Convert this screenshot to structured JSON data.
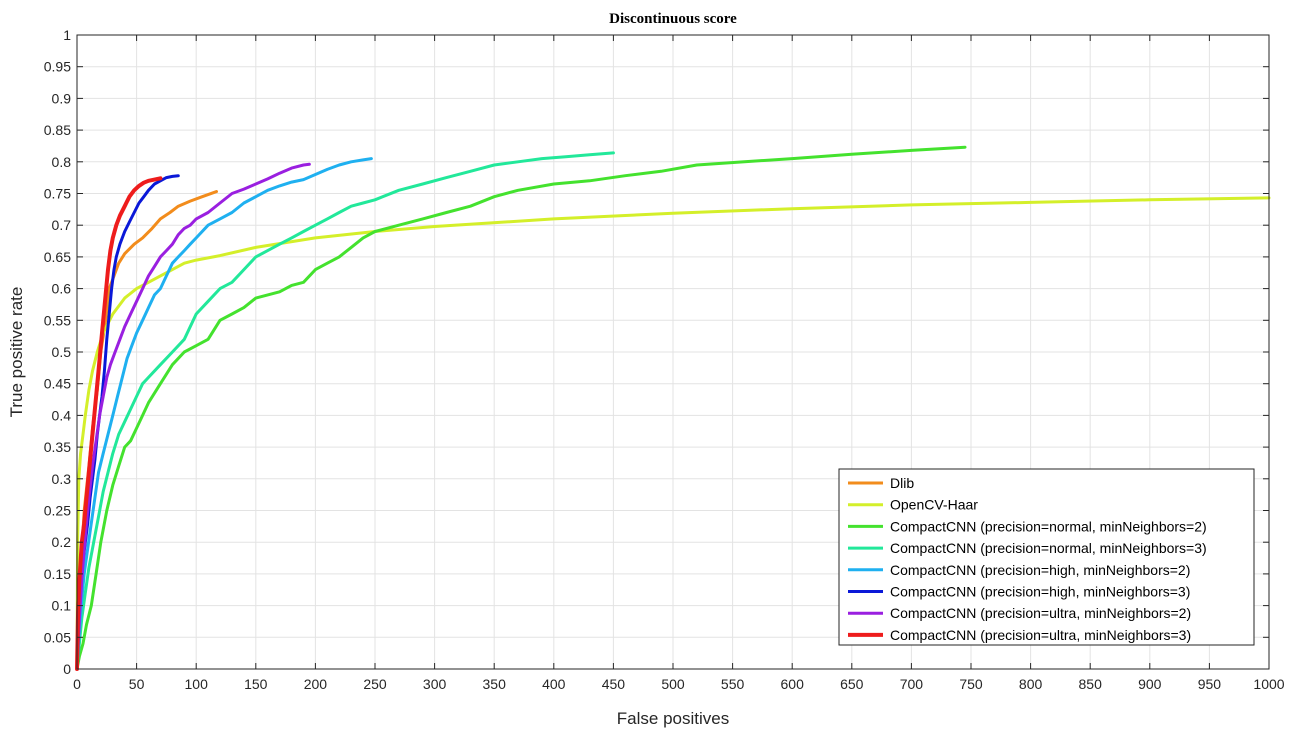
{
  "chart_data": {
    "type": "line",
    "title": "Discontinuous score",
    "xlabel": "False positives",
    "ylabel": "True positive rate",
    "xlim": [
      0,
      1000
    ],
    "ylim": [
      0,
      1
    ],
    "xticks": [
      "0",
      "50",
      "100",
      "150",
      "200",
      "250",
      "300",
      "350",
      "400",
      "450",
      "500",
      "550",
      "600",
      "650",
      "700",
      "750",
      "800",
      "850",
      "900",
      "950",
      "1000"
    ],
    "yticks": [
      "0",
      "0.05",
      "0.1",
      "0.15",
      "0.2",
      "0.25",
      "0.3",
      "0.35",
      "0.4",
      "0.45",
      "0.5",
      "0.55",
      "0.6",
      "0.65",
      "0.7",
      "0.75",
      "0.8",
      "0.85",
      "0.9",
      "0.95",
      "1"
    ],
    "grid": true,
    "legend_position": "bottom-right",
    "series": [
      {
        "name": "Dlib",
        "color": "#f28c1c",
        "x": [
          0,
          3,
          6,
          10,
          13,
          17,
          20,
          24,
          27,
          30,
          35,
          40,
          48,
          55,
          63,
          70,
          78,
          85,
          95,
          105,
          117
        ],
        "y": [
          0,
          0.15,
          0.25,
          0.32,
          0.38,
          0.44,
          0.5,
          0.55,
          0.6,
          0.615,
          0.64,
          0.655,
          0.67,
          0.68,
          0.695,
          0.71,
          0.72,
          0.73,
          0.738,
          0.745,
          0.753
        ]
      },
      {
        "name": "OpenCV-Haar",
        "color": "#d4ef2a",
        "x": [
          0,
          0.5,
          1.5,
          3,
          5,
          7,
          10,
          13,
          17,
          22,
          30,
          40,
          50,
          60,
          70,
          80,
          90,
          100,
          120,
          150,
          200,
          250,
          300,
          400,
          500,
          600,
          700,
          800,
          900,
          1000
        ],
        "y": [
          0,
          0.2,
          0.3,
          0.34,
          0.37,
          0.4,
          0.44,
          0.47,
          0.5,
          0.53,
          0.56,
          0.585,
          0.6,
          0.61,
          0.62,
          0.63,
          0.64,
          0.645,
          0.652,
          0.665,
          0.68,
          0.69,
          0.698,
          0.71,
          0.719,
          0.726,
          0.732,
          0.736,
          0.74,
          0.743
        ]
      },
      {
        "name": "CompactCNN (precision=normal, minNeighbors=2)",
        "color": "#44e22e",
        "x": [
          0,
          2,
          5,
          8,
          12,
          16,
          20,
          25,
          30,
          35,
          40,
          45,
          50,
          55,
          60,
          70,
          80,
          90,
          100,
          110,
          120,
          130,
          140,
          150,
          160,
          170,
          180,
          190,
          200,
          210,
          220,
          230,
          240,
          250,
          270,
          290,
          310,
          330,
          350,
          370,
          400,
          430,
          460,
          490,
          520,
          560,
          600,
          650,
          700,
          745
        ],
        "y": [
          0,
          0.02,
          0.04,
          0.07,
          0.1,
          0.15,
          0.2,
          0.25,
          0.29,
          0.32,
          0.35,
          0.36,
          0.38,
          0.4,
          0.42,
          0.45,
          0.48,
          0.5,
          0.51,
          0.52,
          0.55,
          0.56,
          0.57,
          0.585,
          0.59,
          0.595,
          0.605,
          0.61,
          0.63,
          0.64,
          0.65,
          0.665,
          0.68,
          0.69,
          0.7,
          0.71,
          0.72,
          0.73,
          0.745,
          0.755,
          0.765,
          0.77,
          0.778,
          0.785,
          0.795,
          0.8,
          0.805,
          0.812,
          0.818,
          0.823
        ]
      },
      {
        "name": "CompactCNN (precision=normal, minNeighbors=3)",
        "color": "#22e89a",
        "x": [
          0,
          2,
          4,
          7,
          10,
          14,
          18,
          22,
          26,
          30,
          35,
          40,
          45,
          50,
          55,
          60,
          70,
          80,
          90,
          100,
          110,
          120,
          130,
          140,
          150,
          160,
          170,
          180,
          190,
          200,
          210,
          220,
          230,
          240,
          250,
          270,
          290,
          310,
          330,
          350,
          370,
          390,
          410,
          430,
          450
        ],
        "y": [
          0,
          0.04,
          0.08,
          0.12,
          0.16,
          0.2,
          0.24,
          0.28,
          0.31,
          0.34,
          0.37,
          0.39,
          0.41,
          0.43,
          0.45,
          0.46,
          0.48,
          0.5,
          0.52,
          0.56,
          0.58,
          0.6,
          0.61,
          0.63,
          0.65,
          0.66,
          0.67,
          0.68,
          0.69,
          0.7,
          0.71,
          0.72,
          0.73,
          0.735,
          0.74,
          0.755,
          0.765,
          0.775,
          0.785,
          0.795,
          0.8,
          0.805,
          0.808,
          0.811,
          0.814
        ]
      },
      {
        "name": "CompactCNN (precision=high, minNeighbors=2)",
        "color": "#1fb0f0",
        "x": [
          0,
          2,
          4,
          6,
          9,
          12,
          15,
          18,
          22,
          26,
          30,
          34,
          38,
          42,
          46,
          50,
          55,
          60,
          65,
          70,
          75,
          80,
          85,
          90,
          95,
          100,
          110,
          120,
          130,
          140,
          150,
          160,
          170,
          180,
          190,
          200,
          210,
          220,
          230,
          240,
          247
        ],
        "y": [
          0,
          0.06,
          0.11,
          0.15,
          0.19,
          0.23,
          0.27,
          0.31,
          0.34,
          0.37,
          0.4,
          0.43,
          0.46,
          0.49,
          0.51,
          0.53,
          0.55,
          0.57,
          0.59,
          0.6,
          0.62,
          0.64,
          0.65,
          0.66,
          0.67,
          0.68,
          0.7,
          0.71,
          0.72,
          0.735,
          0.745,
          0.755,
          0.762,
          0.768,
          0.772,
          0.78,
          0.788,
          0.795,
          0.8,
          0.803,
          0.805
        ]
      },
      {
        "name": "CompactCNN (precision=high, minNeighbors=3)",
        "color": "#0a18d8",
        "x": [
          0,
          1,
          2,
          3,
          5,
          7,
          9,
          11,
          13,
          15,
          17,
          19,
          21,
          23,
          25,
          27,
          29,
          31,
          33,
          36,
          40,
          44,
          48,
          52,
          56,
          60,
          65,
          70,
          75,
          80,
          85
        ],
        "y": [
          0,
          0.05,
          0.1,
          0.14,
          0.17,
          0.2,
          0.23,
          0.27,
          0.3,
          0.33,
          0.37,
          0.4,
          0.43,
          0.47,
          0.52,
          0.56,
          0.6,
          0.63,
          0.65,
          0.67,
          0.69,
          0.705,
          0.72,
          0.735,
          0.745,
          0.755,
          0.765,
          0.77,
          0.775,
          0.777,
          0.778
        ]
      },
      {
        "name": "CompactCNN (precision=ultra, minNeighbors=2)",
        "color": "#9a1fe0",
        "x": [
          0,
          2,
          4,
          6,
          8,
          10,
          13,
          16,
          19,
          22,
          25,
          28,
          32,
          36,
          40,
          45,
          50,
          55,
          60,
          65,
          70,
          75,
          80,
          85,
          90,
          95,
          100,
          110,
          120,
          130,
          140,
          150,
          160,
          170,
          180,
          190,
          195
        ],
        "y": [
          0,
          0.08,
          0.14,
          0.19,
          0.23,
          0.27,
          0.32,
          0.36,
          0.4,
          0.43,
          0.46,
          0.48,
          0.5,
          0.52,
          0.54,
          0.56,
          0.58,
          0.6,
          0.62,
          0.635,
          0.65,
          0.66,
          0.67,
          0.685,
          0.695,
          0.7,
          0.71,
          0.72,
          0.735,
          0.75,
          0.757,
          0.765,
          0.773,
          0.782,
          0.79,
          0.795,
          0.796
        ]
      },
      {
        "name": "CompactCNN (precision=ultra, minNeighbors=3)",
        "color": "#ee1c1c",
        "x": [
          0,
          0.5,
          1,
          2,
          3,
          4,
          6,
          8,
          10,
          12,
          14,
          16,
          18,
          20,
          22,
          24,
          26,
          28,
          30,
          33,
          36,
          40,
          44,
          48,
          52,
          56,
          60,
          65,
          70
        ],
        "y": [
          0,
          0.05,
          0.1,
          0.14,
          0.17,
          0.2,
          0.23,
          0.27,
          0.31,
          0.35,
          0.39,
          0.43,
          0.47,
          0.51,
          0.55,
          0.59,
          0.63,
          0.66,
          0.68,
          0.7,
          0.715,
          0.73,
          0.745,
          0.755,
          0.762,
          0.767,
          0.77,
          0.772,
          0.774
        ]
      }
    ]
  }
}
